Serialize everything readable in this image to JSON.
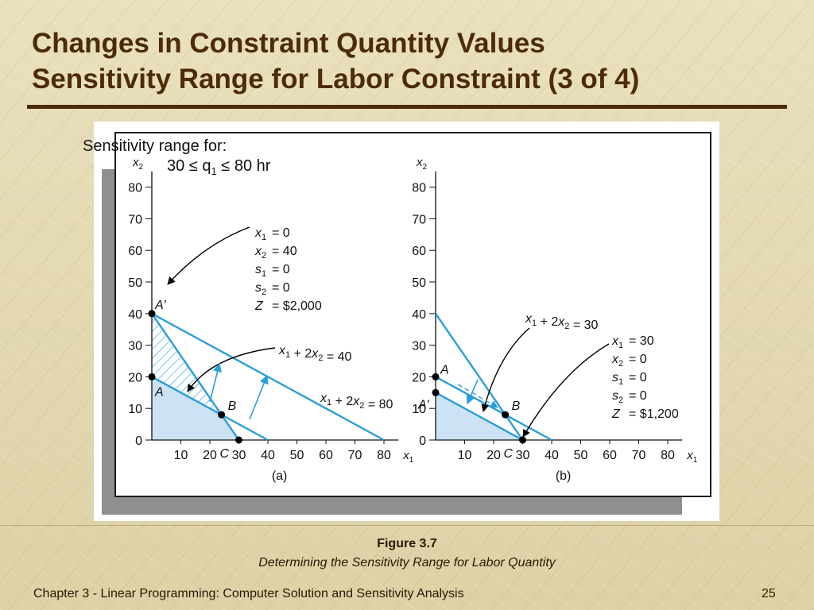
{
  "slide": {
    "title_line1": "Changes in Constraint Quantity Values",
    "title_line2": "Sensitivity Range for Labor Constraint (3 of 4)",
    "figure_number": "Figure 3.7",
    "figure_caption": "Determining the Sensitivity Range for Labor Quantity",
    "footer_text": "Chapter 3 - Linear Programming:  Computer Solution and Sensitivity Analysis",
    "page_number": "25",
    "sensitivity_text": "Sensitivity range for:",
    "sensitivity_range": {
      "low": "30",
      "symbol": "≤",
      "var": "q",
      "sub": "1",
      "high": "80",
      "unit": "hr"
    }
  },
  "colors": {
    "title": "#4d2b08",
    "constraint_line": "#2a9ed8",
    "feasible_fill": "#cde3f5",
    "point": "#000000"
  },
  "chart_data": [
    {
      "type": "line",
      "panel_label": "(a)",
      "xlabel": "x",
      "xlabel_sub": "1",
      "ylabel": "x",
      "ylabel_sub": "2",
      "xticks": [
        10,
        20,
        30,
        40,
        50,
        60,
        70,
        80
      ],
      "yticks": [
        0,
        10,
        20,
        30,
        40,
        50,
        60,
        70,
        80
      ],
      "xlim": [
        0,
        85
      ],
      "ylim": [
        0,
        85
      ],
      "lines": [
        {
          "label": "x₁ + 2x₂ = 40",
          "points": [
            [
              0,
              20
            ],
            [
              40,
              0
            ]
          ]
        },
        {
          "label": "x₁ + 2x₂ = 80",
          "points": [
            [
              0,
              40
            ],
            [
              80,
              0
            ]
          ]
        },
        {
          "label": "",
          "points": [
            [
              0,
              40
            ],
            [
              30,
              0
            ]
          ]
        }
      ],
      "points": [
        {
          "label": "A′",
          "x": 0,
          "y": 40
        },
        {
          "label": "A",
          "x": 0,
          "y": 20
        },
        {
          "label": "B",
          "x": 24,
          "y": 8
        },
        {
          "label": "C",
          "x": 30,
          "y": 0
        }
      ],
      "solution_box": [
        {
          "var": "x",
          "sub": "1",
          "value": "= 0"
        },
        {
          "var": "x",
          "sub": "2",
          "value": "= 40"
        },
        {
          "var": "s",
          "sub": "1",
          "value": "= 0"
        },
        {
          "var": "s",
          "sub": "2",
          "value": "= 0"
        },
        {
          "var": "Z",
          "sub": "",
          "value": "= $2,000"
        }
      ],
      "line_labels": [
        {
          "parts": [
            "x",
            "1",
            " + 2",
            "x",
            "2",
            " = 40"
          ]
        },
        {
          "parts": [
            "x",
            "1",
            " + 2",
            "x",
            "2",
            " = 80"
          ]
        }
      ]
    },
    {
      "type": "line",
      "panel_label": "(b)",
      "xlabel": "x",
      "xlabel_sub": "1",
      "ylabel": "x",
      "ylabel_sub": "2",
      "xticks": [
        10,
        20,
        30,
        40,
        50,
        60,
        70,
        80
      ],
      "yticks": [
        0,
        10,
        20,
        30,
        40,
        50,
        60,
        70,
        80
      ],
      "xlim": [
        0,
        85
      ],
      "ylim": [
        0,
        85
      ],
      "lines": [
        {
          "label": "x₁ + 2x₂ = 30",
          "points": [
            [
              0,
              15
            ],
            [
              30,
              0
            ]
          ]
        },
        {
          "label": "",
          "points": [
            [
              0,
              20
            ],
            [
              40,
              0
            ]
          ]
        },
        {
          "label": "",
          "points": [
            [
              0,
              40
            ],
            [
              30,
              0
            ]
          ]
        }
      ],
      "points": [
        {
          "label": "A",
          "x": 0,
          "y": 20
        },
        {
          "label": "A′",
          "x": 0,
          "y": 15
        },
        {
          "label": "B",
          "x": 24,
          "y": 8
        },
        {
          "label": "C",
          "x": 30,
          "y": 0
        }
      ],
      "solution_box": [
        {
          "var": "x",
          "sub": "1",
          "value": "= 30"
        },
        {
          "var": "x",
          "sub": "2",
          "value": "= 0"
        },
        {
          "var": "s",
          "sub": "1",
          "value": "= 0"
        },
        {
          "var": "s",
          "sub": "2",
          "value": "= 0"
        },
        {
          "var": "Z",
          "sub": "",
          "value": "= $1,200"
        }
      ],
      "line_labels": [
        {
          "parts": [
            "x",
            "1",
            " + 2",
            "x",
            "2",
            " = 30"
          ]
        }
      ]
    }
  ]
}
